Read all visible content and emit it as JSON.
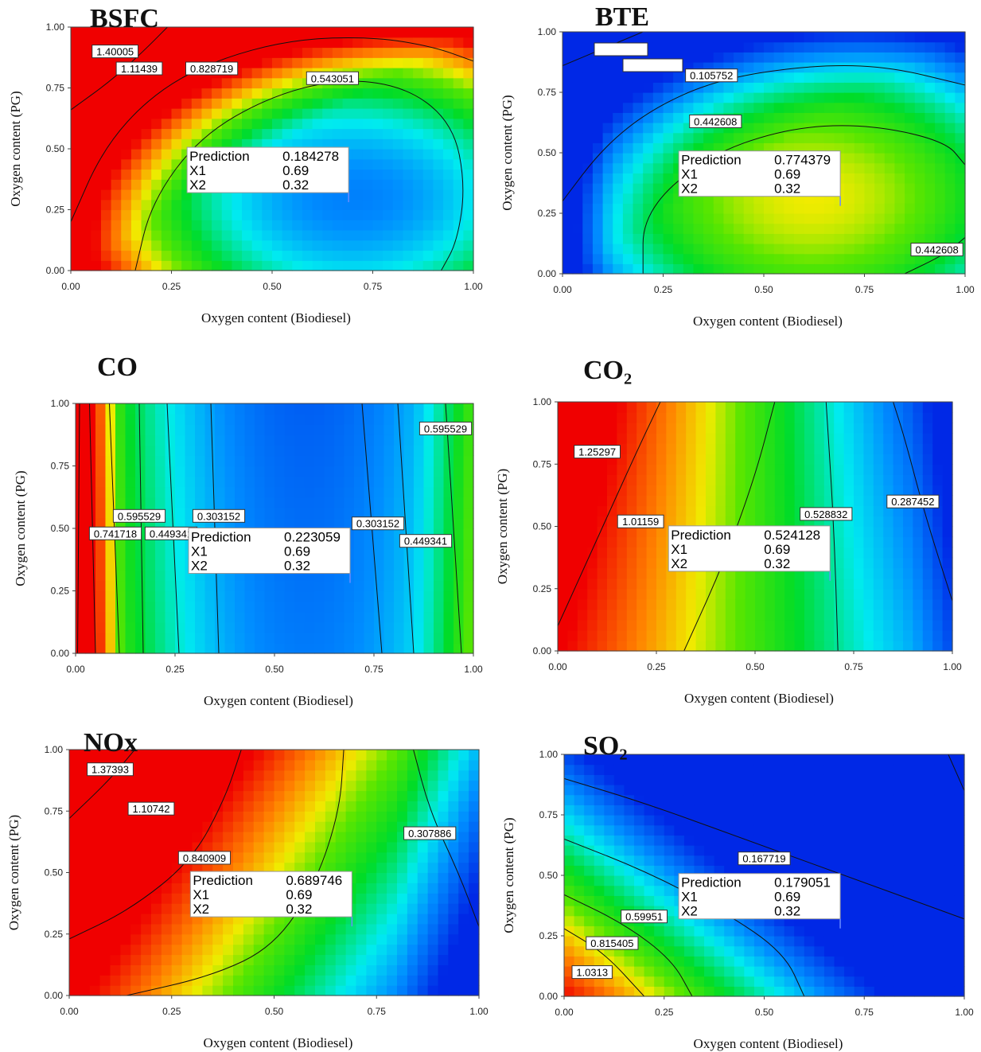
{
  "chart_data": [
    {
      "type": "heatmap",
      "title": "BSFC",
      "xlabel": "Oxygen content (Biodiesel)",
      "ylabel": "Oxygen content (PG)",
      "xlim": [
        0,
        1
      ],
      "ylim": [
        0,
        1
      ],
      "x_ticks": [
        "0.00",
        "0.25",
        "0.50",
        "0.75",
        "1.00"
      ],
      "y_ticks": [
        "0.00",
        "0.25",
        "0.50",
        "0.75",
        "1.00"
      ],
      "contour_labels": [
        {
          "text": "1.40005",
          "x": 0.11,
          "y": 0.9
        },
        {
          "text": "1.11439",
          "x": 0.17,
          "y": 0.83
        },
        {
          "text": "0.828719",
          "x": 0.35,
          "y": 0.83
        },
        {
          "text": "0.543051",
          "x": 0.65,
          "y": 0.79
        }
      ],
      "prediction": {
        "label": "Prediction",
        "value": "0.184278",
        "x1_label": "X1",
        "x1": "0.69",
        "x2_label": "X2",
        "x2": "0.32"
      },
      "colorscale": "rainbow"
    },
    {
      "type": "heatmap",
      "title": "BTE",
      "xlabel": "Oxygen content (Biodiesel)",
      "ylabel": "Oxygen content (PG)",
      "xlim": [
        0,
        1
      ],
      "ylim": [
        0,
        1
      ],
      "x_ticks": [
        "0.00",
        "0.25",
        "0.50",
        "0.75",
        "1.00"
      ],
      "y_ticks": [
        "0.00",
        "0.25",
        "0.50",
        "0.75",
        "1.00"
      ],
      "contour_labels": [
        {
          "text": "0.105752",
          "x": 0.37,
          "y": 0.82
        },
        {
          "text": "0.442608",
          "x": 0.38,
          "y": 0.63
        },
        {
          "text": "0.442608",
          "x": 0.93,
          "y": 0.1
        }
      ],
      "prediction": {
        "label": "Prediction",
        "value": "0.774379",
        "x1_label": "X1",
        "x1": "0.69",
        "x2_label": "X2",
        "x2": "0.32"
      },
      "colorscale": "rainbow"
    },
    {
      "type": "heatmap",
      "title": "CO",
      "xlabel": "Oxygen content (Biodiesel)",
      "ylabel": "Oxygen content (PG)",
      "xlim": [
        0,
        1
      ],
      "ylim": [
        0,
        1
      ],
      "x_ticks": [
        "0.00",
        "0.25",
        "0.50",
        "0.75",
        "1.00"
      ],
      "y_ticks": [
        "0.00",
        "0.25",
        "0.50",
        "0.75",
        "1.00"
      ],
      "contour_labels": [
        {
          "text": "0.595529",
          "x": 0.93,
          "y": 0.9
        },
        {
          "text": "0.595529",
          "x": 0.16,
          "y": 0.55
        },
        {
          "text": "0.303152",
          "x": 0.36,
          "y": 0.55
        },
        {
          "text": "0.741718",
          "x": 0.1,
          "y": 0.48
        },
        {
          "text": "0.449341",
          "x": 0.24,
          "y": 0.48
        },
        {
          "text": "0.303152",
          "x": 0.76,
          "y": 0.52
        },
        {
          "text": "0.449341",
          "x": 0.88,
          "y": 0.45
        }
      ],
      "prediction": {
        "label": "Prediction",
        "value": "0.223059",
        "x1_label": "X1",
        "x1": "0.69",
        "x2_label": "X2",
        "x2": "0.32"
      },
      "colorscale": "rainbow"
    },
    {
      "type": "heatmap",
      "title": "CO₂",
      "xlabel": "Oxygen content (Biodiesel)",
      "ylabel": "Oxygen content (PG)",
      "xlim": [
        0,
        1
      ],
      "ylim": [
        0,
        1
      ],
      "x_ticks": [
        "0.00",
        "0.25",
        "0.50",
        "0.75",
        "1.00"
      ],
      "y_ticks": [
        "0.00",
        "0.25",
        "0.50",
        "0.75",
        "1.00"
      ],
      "contour_labels": [
        {
          "text": "1.25297",
          "x": 0.1,
          "y": 0.8
        },
        {
          "text": "1.01159",
          "x": 0.21,
          "y": 0.52
        },
        {
          "text": "0.528832",
          "x": 0.68,
          "y": 0.55
        },
        {
          "text": "0.287452",
          "x": 0.9,
          "y": 0.6
        }
      ],
      "prediction": {
        "label": "Prediction",
        "value": "0.524128",
        "x1_label": "X1",
        "x1": "0.69",
        "x2_label": "X2",
        "x2": "0.32"
      },
      "colorscale": "rainbow"
    },
    {
      "type": "heatmap",
      "title": "NOx",
      "xlabel": "Oxygen content (Biodiesel)",
      "ylabel": "Oxygen content (PG)",
      "xlim": [
        0,
        1
      ],
      "ylim": [
        0,
        1
      ],
      "x_ticks": [
        "0.00",
        "0.25",
        "0.50",
        "0.75",
        "1.00"
      ],
      "y_ticks": [
        "0.00",
        "0.25",
        "0.50",
        "0.75",
        "1.00"
      ],
      "contour_labels": [
        {
          "text": "1.37393",
          "x": 0.1,
          "y": 0.92
        },
        {
          "text": "1.10742",
          "x": 0.2,
          "y": 0.76
        },
        {
          "text": "0.840909",
          "x": 0.33,
          "y": 0.56
        },
        {
          "text": "0.307886",
          "x": 0.88,
          "y": 0.66
        }
      ],
      "prediction": {
        "label": "Prediction",
        "value": "0.689746",
        "x1_label": "X1",
        "x1": "0.69",
        "x2_label": "X2",
        "x2": "0.32"
      },
      "colorscale": "rainbow"
    },
    {
      "type": "heatmap",
      "title": "SO₂",
      "xlabel": "Oxygen content (Biodiesel)",
      "ylabel": "Oxygen content (PG)",
      "xlim": [
        0,
        1
      ],
      "ylim": [
        0,
        1
      ],
      "x_ticks": [
        "0.00",
        "0.25",
        "0.50",
        "0.75",
        "1.00"
      ],
      "y_ticks": [
        "0.00",
        "0.25",
        "0.50",
        "0.75",
        "1.00"
      ],
      "contour_labels": [
        {
          "text": "0.167719",
          "x": 0.5,
          "y": 0.57
        },
        {
          "text": "0.59951",
          "x": 0.2,
          "y": 0.33
        },
        {
          "text": "0.815405",
          "x": 0.12,
          "y": 0.22
        },
        {
          "text": "1.0313",
          "x": 0.07,
          "y": 0.1
        }
      ],
      "prediction": {
        "label": "Prediction",
        "value": "0.179051",
        "x1_label": "X1",
        "x1": "0.69",
        "x2_label": "X2",
        "x2": "0.32"
      },
      "colorscale": "rainbow"
    }
  ]
}
